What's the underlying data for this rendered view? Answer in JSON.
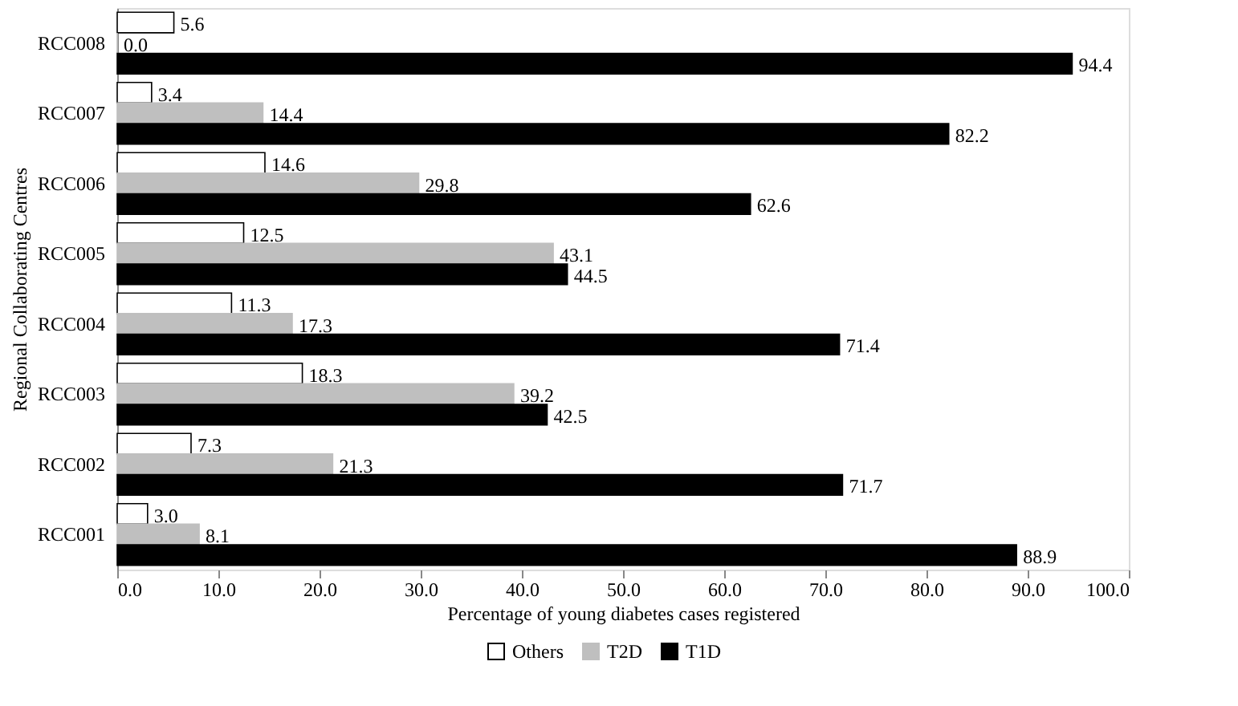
{
  "chart_data": {
    "type": "bar",
    "orientation": "horizontal",
    "xlabel": "Percentage of young diabetes cases registered",
    "ylabel": "Regional Collaborating Centres",
    "categories": [
      "RCC008",
      "RCC007",
      "RCC006",
      "RCC005",
      "RCC004",
      "RCC003",
      "RCC002",
      "RCC001"
    ],
    "series": [
      {
        "name": "Others",
        "color": "#ffffff",
        "values": [
          5.6,
          3.4,
          14.6,
          12.5,
          11.3,
          18.3,
          7.3,
          3.0
        ],
        "value_labels": [
          "5.6",
          "3.4",
          "14.6",
          "12.5",
          "11.3",
          "18.3",
          "7.3",
          "3.0"
        ]
      },
      {
        "name": "T2D",
        "color": "#bfbfbf",
        "values": [
          0.0,
          14.4,
          29.8,
          43.1,
          17.3,
          39.2,
          21.3,
          8.1
        ],
        "value_labels": [
          "0.0",
          "14.4",
          "29.8",
          "43.1",
          "17.3",
          "39.2",
          "21.3",
          "8.1"
        ]
      },
      {
        "name": "T1D",
        "color": "#000000",
        "values": [
          94.4,
          82.2,
          62.6,
          44.5,
          71.4,
          42.5,
          71.7,
          88.9
        ],
        "value_labels": [
          "94.4",
          "82.2",
          "62.6",
          "44.5",
          "71.4",
          "42.5",
          "71.7",
          "88.9"
        ]
      }
    ],
    "xlim": [
      0,
      100
    ],
    "xticks": [
      {
        "value": 0,
        "label": "0.0"
      },
      {
        "value": 10,
        "label": "10.0"
      },
      {
        "value": 20,
        "label": "20.0"
      },
      {
        "value": 30,
        "label": "30.0"
      },
      {
        "value": 40,
        "label": "40.0"
      },
      {
        "value": 50,
        "label": "50.0"
      },
      {
        "value": 60,
        "label": "60.0"
      },
      {
        "value": 70,
        "label": "70.0"
      },
      {
        "value": 80,
        "label": "80.0"
      },
      {
        "value": 90,
        "label": "90.0"
      },
      {
        "value": 100,
        "label": "100.0"
      }
    ],
    "grid": false,
    "legend": "bottom"
  }
}
